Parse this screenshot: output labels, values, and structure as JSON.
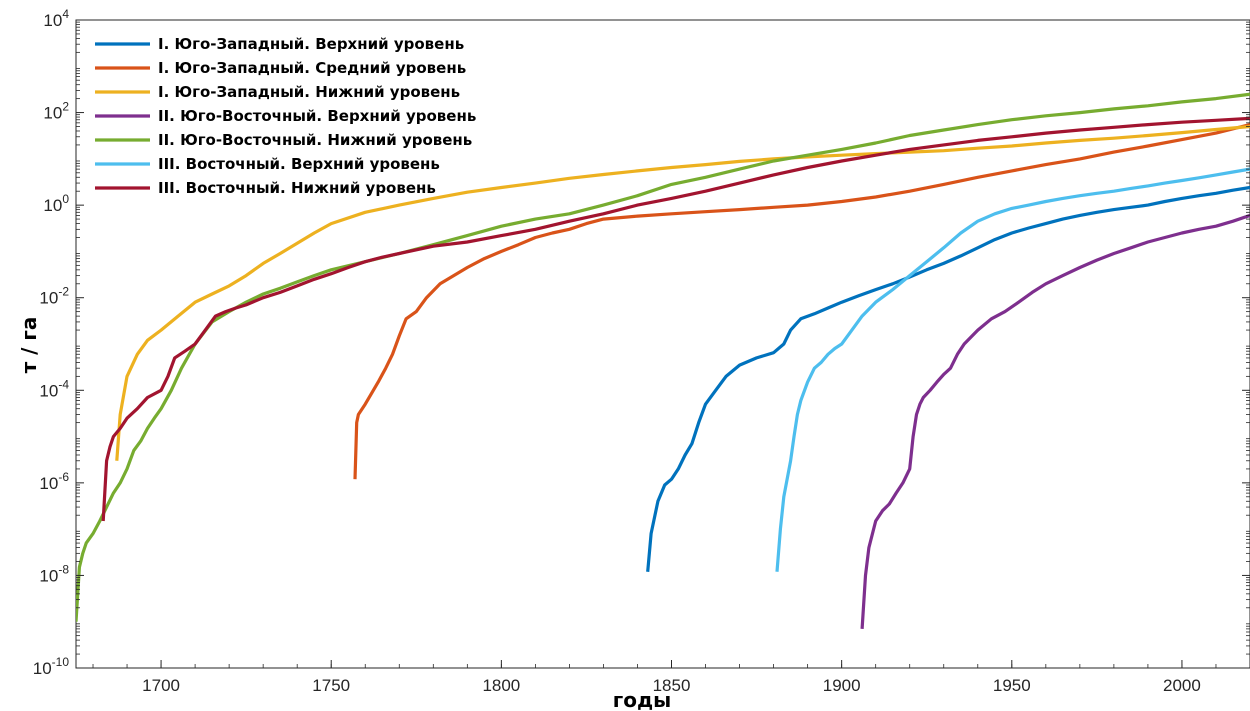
{
  "chart_data": {
    "type": "line",
    "title": "",
    "xlabel": "годы",
    "ylabel": "т / га",
    "xlim": [
      1675,
      2020
    ],
    "ylim": [
      1e-10,
      10000
    ],
    "yscale": "log",
    "grid": false,
    "legend_position": "top-left",
    "x_ticks": [
      1700,
      1750,
      1800,
      1850,
      1900,
      1950,
      2000
    ],
    "y_ticks": [
      {
        "value": 1e-10,
        "base": "10",
        "exp": "-10"
      },
      {
        "value": 1e-08,
        "base": "10",
        "exp": "-8"
      },
      {
        "value": 1e-06,
        "base": "10",
        "exp": "-6"
      },
      {
        "value": 0.0001,
        "base": "10",
        "exp": "-4"
      },
      {
        "value": 0.01,
        "base": "10",
        "exp": "-2"
      },
      {
        "value": 1,
        "base": "10",
        "exp": "0"
      },
      {
        "value": 100,
        "base": "10",
        "exp": "2"
      },
      {
        "value": 10000,
        "base": "10",
        "exp": "4"
      }
    ],
    "series": [
      {
        "name": "I. Юго-Западный. Верхний уровень",
        "color": "#0072BD",
        "x": [
          1843,
          1844,
          1846,
          1848,
          1850,
          1852,
          1854,
          1856,
          1858,
          1860,
          1863,
          1866,
          1870,
          1875,
          1880,
          1883,
          1885,
          1888,
          1892,
          1896,
          1900,
          1905,
          1910,
          1915,
          1920,
          1925,
          1930,
          1935,
          1940,
          1945,
          1950,
          1955,
          1960,
          1965,
          1970,
          1975,
          1980,
          1985,
          1990,
          1995,
          2000,
          2005,
          2010,
          2015,
          2020
        ],
        "y": [
          1.2e-08,
          8e-08,
          4e-07,
          9e-07,
          1.2e-06,
          2e-06,
          4e-06,
          7e-06,
          2e-05,
          5e-05,
          0.0001,
          0.0002,
          0.00035,
          0.0005,
          0.00065,
          0.001,
          0.002,
          0.0035,
          0.0045,
          0.006,
          0.008,
          0.011,
          0.015,
          0.02,
          0.028,
          0.04,
          0.055,
          0.08,
          0.12,
          0.18,
          0.25,
          0.32,
          0.4,
          0.5,
          0.6,
          0.7,
          0.8,
          0.9,
          1.0,
          1.2,
          1.4,
          1.6,
          1.8,
          2.1,
          2.4
        ]
      },
      {
        "name": "I. Юго-Западный. Средний уровень",
        "color": "#D95319",
        "x": [
          1757,
          1757.5,
          1758,
          1760,
          1762,
          1764,
          1766,
          1768,
          1770,
          1772,
          1775,
          1778,
          1782,
          1786,
          1790,
          1795,
          1800,
          1805,
          1810,
          1815,
          1820,
          1825,
          1830,
          1840,
          1850,
          1860,
          1870,
          1880,
          1890,
          1900,
          1910,
          1920,
          1930,
          1940,
          1950,
          1960,
          1970,
          1980,
          1990,
          2000,
          2010,
          2020
        ],
        "y": [
          1.2e-06,
          2e-05,
          3e-05,
          5e-05,
          9e-05,
          0.00016,
          0.0003,
          0.0006,
          0.0015,
          0.0035,
          0.005,
          0.01,
          0.02,
          0.03,
          0.045,
          0.07,
          0.1,
          0.14,
          0.2,
          0.25,
          0.3,
          0.4,
          0.5,
          0.58,
          0.65,
          0.72,
          0.8,
          0.9,
          1.0,
          1.2,
          1.5,
          2.0,
          2.8,
          4.0,
          5.5,
          7.5,
          10,
          14,
          19,
          26,
          36,
          55
        ]
      },
      {
        "name": "I. Юго-Западный. Нижний уровень",
        "color": "#EDB120",
        "x": [
          1687,
          1688,
          1690,
          1693,
          1696,
          1700,
          1705,
          1710,
          1715,
          1720,
          1725,
          1730,
          1735,
          1740,
          1745,
          1750,
          1760,
          1770,
          1780,
          1790,
          1800,
          1810,
          1820,
          1830,
          1840,
          1850,
          1860,
          1870,
          1880,
          1890,
          1900,
          1910,
          1920,
          1930,
          1940,
          1950,
          1960,
          1970,
          1980,
          1990,
          2000,
          2010,
          2020
        ],
        "y": [
          3e-06,
          3e-05,
          0.0002,
          0.0006,
          0.0012,
          0.002,
          0.004,
          0.008,
          0.012,
          0.018,
          0.03,
          0.055,
          0.09,
          0.15,
          0.25,
          0.4,
          0.7,
          1.0,
          1.4,
          1.9,
          2.4,
          3.0,
          3.8,
          4.6,
          5.5,
          6.5,
          7.5,
          8.8,
          10,
          11,
          12,
          13,
          14,
          15,
          17,
          19,
          22,
          25,
          28,
          32,
          37,
          43,
          50
        ]
      },
      {
        "name": "II. Юго-Восточный. Верхний уровень",
        "color": "#7E2F8E",
        "x": [
          1906,
          1907,
          1908,
          1910,
          1912,
          1914,
          1916,
          1918,
          1920,
          1921,
          1922,
          1923,
          1924,
          1926,
          1928,
          1930,
          1932,
          1934,
          1936,
          1940,
          1944,
          1948,
          1952,
          1956,
          1960,
          1965,
          1970,
          1975,
          1980,
          1985,
          1990,
          1995,
          2000,
          2005,
          2010,
          2015,
          2020
        ],
        "y": [
          7e-10,
          1e-08,
          4e-08,
          1.5e-07,
          2.5e-07,
          3.5e-07,
          6e-07,
          1e-06,
          2e-06,
          1e-05,
          3e-05,
          5e-05,
          7e-05,
          0.0001,
          0.00015,
          0.00022,
          0.0003,
          0.0006,
          0.001,
          0.002,
          0.0035,
          0.005,
          0.008,
          0.013,
          0.02,
          0.03,
          0.045,
          0.065,
          0.09,
          0.12,
          0.16,
          0.2,
          0.25,
          0.3,
          0.35,
          0.45,
          0.6
        ]
      },
      {
        "name": "II. Юго-Восточный. Нижний уровень",
        "color": "#77AC30",
        "x": [
          1675,
          1676,
          1677,
          1678,
          1680,
          1682,
          1684,
          1686,
          1688,
          1690,
          1692,
          1694,
          1696,
          1698,
          1700,
          1703,
          1706,
          1710,
          1715,
          1720,
          1725,
          1730,
          1735,
          1740,
          1745,
          1750,
          1760,
          1770,
          1780,
          1790,
          1800,
          1810,
          1820,
          1830,
          1840,
          1850,
          1860,
          1870,
          1880,
          1890,
          1900,
          1910,
          1920,
          1930,
          1940,
          1950,
          1960,
          1970,
          1980,
          1990,
          2000,
          2010,
          2020
        ],
        "y": [
          1e-09,
          1.5e-08,
          3e-08,
          5e-08,
          8e-08,
          1.5e-07,
          3e-07,
          6e-07,
          1e-06,
          2e-06,
          5e-06,
          8e-06,
          1.5e-05,
          2.5e-05,
          4e-05,
          0.0001,
          0.0003,
          0.001,
          0.003,
          0.005,
          0.008,
          0.012,
          0.016,
          0.022,
          0.03,
          0.04,
          0.06,
          0.09,
          0.14,
          0.22,
          0.35,
          0.5,
          0.65,
          1.0,
          1.6,
          2.8,
          4.0,
          6.0,
          9.0,
          12,
          16,
          22,
          32,
          42,
          55,
          70,
          85,
          100,
          120,
          140,
          170,
          200,
          250
        ]
      },
      {
        "name": "III. Восточный. Верхний уровень",
        "color": "#4DBEEE",
        "x": [
          1881,
          1882,
          1883,
          1885,
          1886,
          1887,
          1888,
          1890,
          1892,
          1894,
          1896,
          1898,
          1900,
          1903,
          1906,
          1910,
          1915,
          1920,
          1925,
          1930,
          1935,
          1940,
          1945,
          1950,
          1955,
          1960,
          1965,
          1970,
          1975,
          1980,
          1985,
          1990,
          1995,
          2000,
          2005,
          2010,
          2015,
          2020
        ],
        "y": [
          1.2e-08,
          1e-07,
          5e-07,
          3e-06,
          1e-05,
          3e-05,
          6e-05,
          0.00015,
          0.0003,
          0.0004,
          0.0006,
          0.0008,
          0.001,
          0.002,
          0.004,
          0.008,
          0.015,
          0.03,
          0.06,
          0.12,
          0.25,
          0.45,
          0.65,
          0.85,
          1.0,
          1.2,
          1.4,
          1.6,
          1.8,
          2.0,
          2.3,
          2.6,
          3.0,
          3.4,
          3.9,
          4.5,
          5.2,
          6.0
        ]
      },
      {
        "name": "III. Восточный. Нижний уровень",
        "color": "#A2142F",
        "x": [
          1683,
          1684,
          1685,
          1686,
          1688,
          1690,
          1693,
          1696,
          1700,
          1702,
          1704,
          1707,
          1710,
          1713,
          1716,
          1719,
          1722,
          1725,
          1730,
          1735,
          1740,
          1745,
          1750,
          1755,
          1760,
          1765,
          1770,
          1780,
          1790,
          1800,
          1810,
          1820,
          1830,
          1840,
          1850,
          1860,
          1870,
          1880,
          1890,
          1900,
          1910,
          1920,
          1930,
          1940,
          1950,
          1960,
          1970,
          1980,
          1990,
          2000,
          2010,
          2020
        ],
        "y": [
          1.5e-07,
          3e-06,
          6e-06,
          1e-05,
          1.5e-05,
          2.5e-05,
          4e-05,
          7e-05,
          0.0001,
          0.0002,
          0.0005,
          0.0007,
          0.001,
          0.002,
          0.004,
          0.005,
          0.006,
          0.007,
          0.01,
          0.013,
          0.018,
          0.025,
          0.033,
          0.045,
          0.06,
          0.075,
          0.09,
          0.13,
          0.16,
          0.22,
          0.3,
          0.45,
          0.65,
          1.0,
          1.4,
          2.0,
          3.0,
          4.5,
          6.5,
          9.0,
          12,
          16,
          20,
          25,
          30,
          36,
          42,
          48,
          55,
          62,
          68,
          75
        ]
      }
    ]
  }
}
